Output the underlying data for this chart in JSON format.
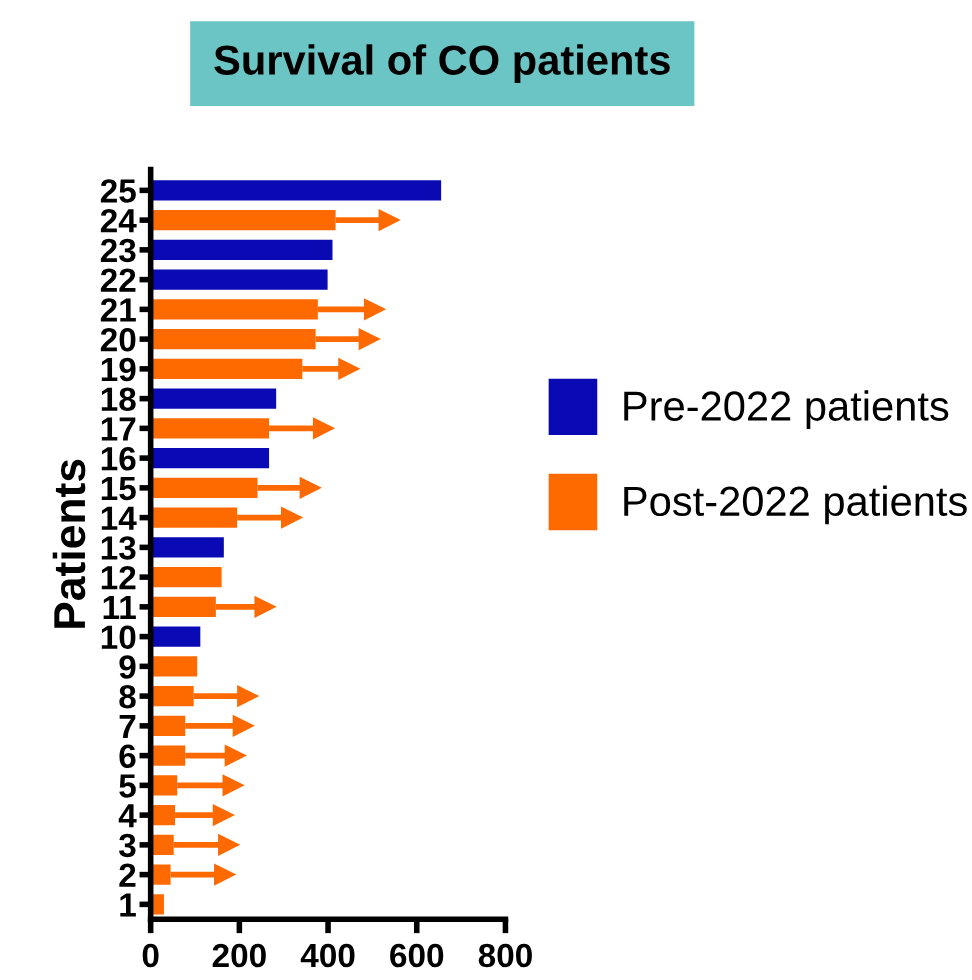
{
  "chart_data": {
    "type": "bar",
    "orientation": "horizontal",
    "title": "Survival of CO patients",
    "ylabel": "Patients",
    "categories": [
      "25",
      "24",
      "23",
      "22",
      "21",
      "20",
      "19",
      "18",
      "17",
      "16",
      "15",
      "14",
      "13",
      "12",
      "11",
      "10",
      "9",
      "8",
      "7",
      "6",
      "5",
      "4",
      "3",
      "2",
      "1"
    ],
    "series": [
      {
        "name": "Pre-2022 patients",
        "color": "#0a0ab4",
        "values": [
          655,
          null,
          410,
          399,
          null,
          null,
          null,
          283,
          null,
          267,
          null,
          null,
          165,
          null,
          null,
          112,
          null,
          null,
          null,
          null,
          null,
          null,
          null,
          null,
          null
        ]
      },
      {
        "name": "Post-2022 patients",
        "color": "#ff6a00",
        "values": [
          null,
          417,
          null,
          null,
          377,
          372,
          342,
          null,
          267,
          null,
          241,
          195,
          null,
          160,
          147,
          null,
          105,
          97,
          78,
          78,
          60,
          55,
          52,
          45,
          30
        ],
        "errors": [
          null,
          [
            417,
            539
          ],
          null,
          null,
          [
            377,
            506
          ],
          [
            372,
            494
          ],
          [
            342,
            448
          ],
          null,
          [
            267,
            391
          ],
          null,
          [
            241,
            361
          ],
          [
            195,
            319
          ],
          null,
          null,
          [
            147,
            259
          ],
          null,
          null,
          [
            97,
            220
          ],
          [
            78,
            210
          ],
          [
            78,
            192
          ],
          [
            60,
            187
          ],
          [
            55,
            165
          ],
          [
            52,
            177
          ],
          [
            45,
            168
          ],
          null
        ]
      }
    ],
    "xlim": [
      0,
      800
    ],
    "xticks": [
      0,
      200,
      400,
      600,
      800
    ],
    "grid": false,
    "legend": "right"
  }
}
